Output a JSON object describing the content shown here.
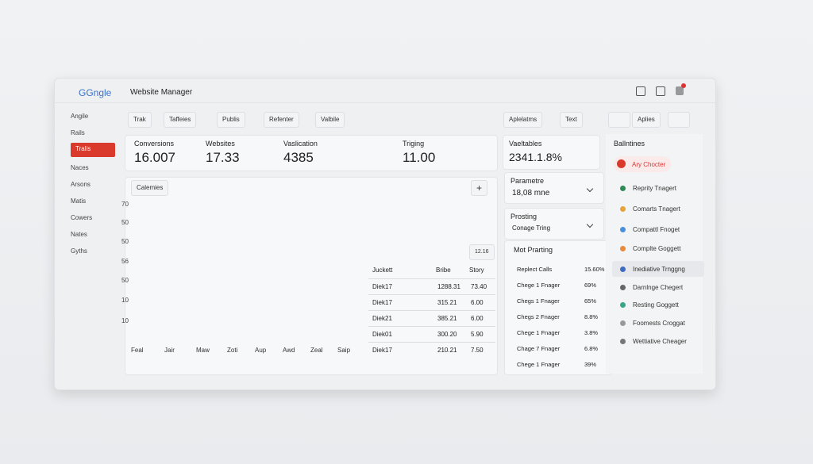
{
  "header": {
    "logo": "GGngle",
    "title": "Website Manager"
  },
  "sidebar": [
    "Angile",
    "Rails",
    "Tralis",
    "Naces",
    "Arsons",
    "Matis",
    "Cowers",
    "Nates",
    "Gyths"
  ],
  "toolbar": {
    "left": [
      "Trak",
      "Taffeies",
      "Publis",
      "Refenter",
      "Valbile"
    ],
    "right": [
      "Aplelatms",
      "Text",
      "Aplies"
    ]
  },
  "metrics": [
    {
      "label": "Conversions",
      "value": "16.007"
    },
    {
      "label": "Websites",
      "value": "17.33"
    },
    {
      "label": "Vaslication",
      "value": "4385"
    },
    {
      "label": "Triging",
      "value": "11.00"
    }
  ],
  "side_metric": {
    "label": "Vaeltables",
    "value": "2341.1.8%"
  },
  "chart_card": {
    "button": "Calemies",
    "add": "+",
    "y_labels": [
      "70",
      "50",
      "50",
      "56",
      "50",
      "10",
      "10"
    ],
    "x_labels": [
      "Feal",
      "Jair",
      "Maw",
      "Zoti",
      "Aup",
      "Awd",
      "Zeal",
      "Saip"
    ]
  },
  "table": {
    "badge": "12.16",
    "header": [
      "Juckett",
      "Bribe",
      "Story"
    ],
    "rows": [
      [
        "Diek17",
        "1288.31",
        "73.40"
      ],
      [
        "Diek17",
        "315.21",
        "6.00"
      ],
      [
        "Diek21",
        "385.21",
        "6.00"
      ],
      [
        "Diek01",
        "300.20",
        "5.90"
      ],
      [
        "Diek17",
        "210.21",
        "7.50"
      ]
    ]
  },
  "selects": [
    {
      "label": "Parametre",
      "value": "18,08 mne"
    },
    {
      "label": "Prosting",
      "value": "Conage Tring"
    }
  ],
  "list_card": {
    "title": "Mot Prarting",
    "rows": [
      [
        "Replect Calls",
        "15.60%"
      ],
      [
        "Chege 1 Fnager",
        "69%"
      ],
      [
        "Chegs 1 Fnager",
        "65%"
      ],
      [
        "Chegs 2 Fnager",
        "8.8%"
      ],
      [
        "Chege 1 Fnager",
        "3.8%"
      ],
      [
        "Chage 7 Fnager",
        "6.8%"
      ],
      [
        "Chege 1 Fnager",
        "39%"
      ]
    ]
  },
  "right_panel": {
    "title": "Ballntines",
    "items": [
      "Ary Chocter",
      "Reprity Tnagert",
      "Comarts Tnagert",
      "Compattl Fnoget",
      "Complte Goggett",
      "Inediative Trnggng",
      "Darnlnge Chegert",
      "Resting Goggett",
      "Foomests Croggat",
      "Wettiative Cheager"
    ]
  }
}
